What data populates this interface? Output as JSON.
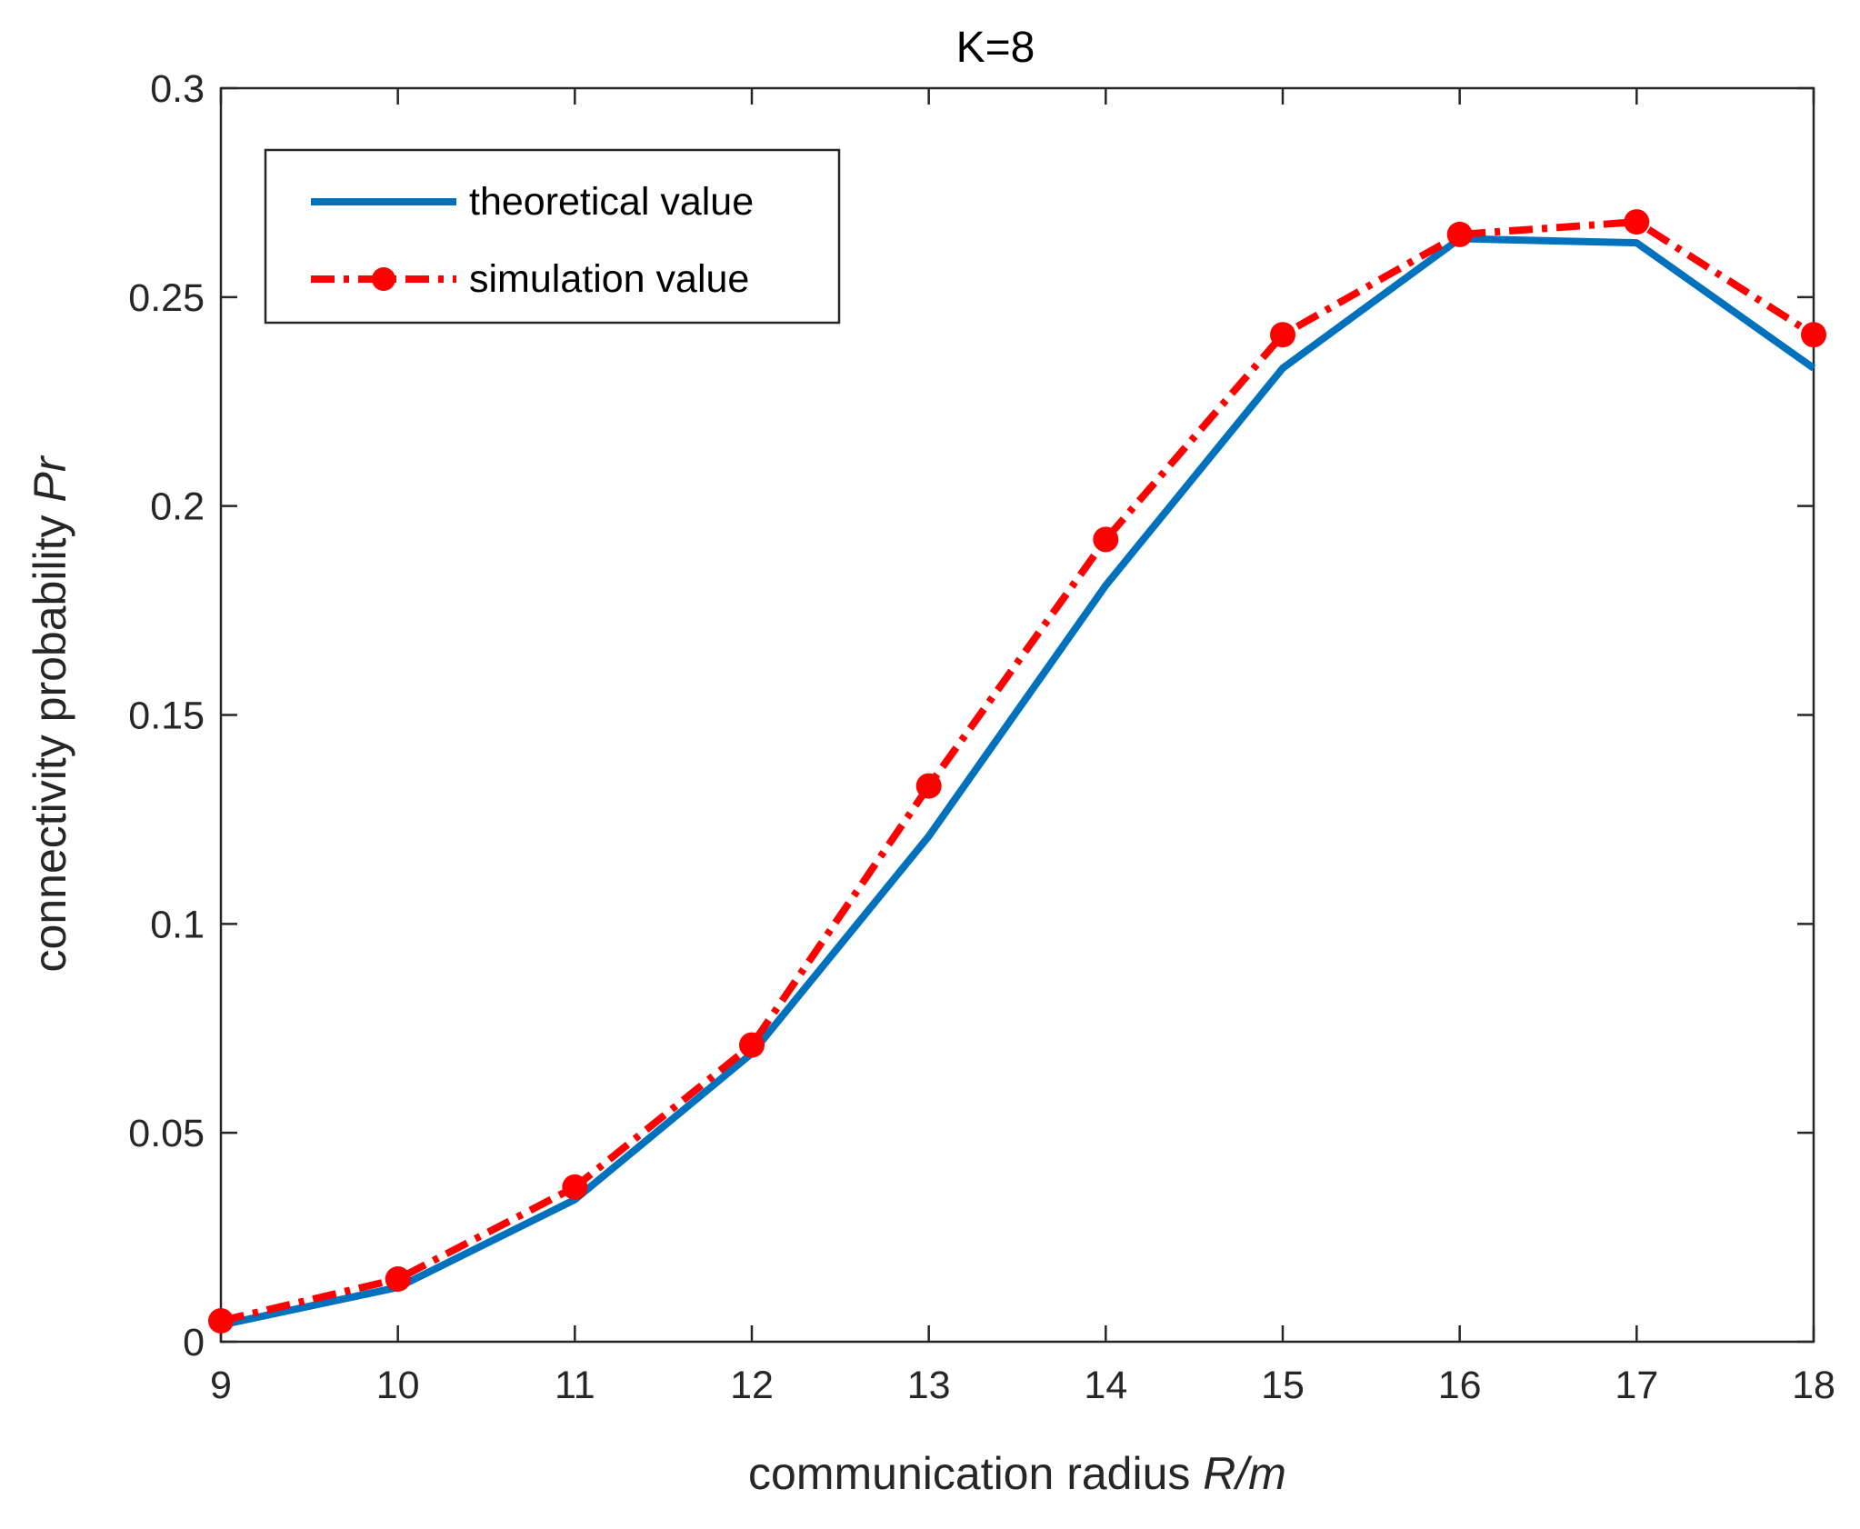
{
  "chart_data": {
    "type": "line",
    "title": "K=8",
    "xlabel": "communication radius",
    "xlabel_var": "R/m",
    "ylabel": "connectivity probability",
    "ylabel_var": "Pr",
    "xlim": [
      9,
      18
    ],
    "ylim": [
      0,
      0.3
    ],
    "xticks": [
      "9",
      "10",
      "11",
      "12",
      "13",
      "14",
      "15",
      "16",
      "17",
      "18"
    ],
    "yticks": [
      "0",
      "0.05",
      "0.1",
      "0.15",
      "0.2",
      "0.25",
      "0.3"
    ],
    "x": [
      9,
      10,
      11,
      12,
      13,
      14,
      15,
      16,
      17,
      18
    ],
    "grid": false,
    "legend_position": "top-left",
    "series": [
      {
        "name": "theoretical value",
        "values": [
          0.004,
          0.013,
          0.034,
          0.069,
          0.121,
          0.181,
          0.233,
          0.264,
          0.263,
          0.233
        ],
        "color": "#0072BD",
        "style": "solid",
        "marker": "none"
      },
      {
        "name": "simulation value",
        "values": [
          0.005,
          0.015,
          0.037,
          0.071,
          0.133,
          0.192,
          0.241,
          0.265,
          0.268,
          0.241
        ],
        "color": "#FF0000",
        "style": "dash-dot",
        "marker": "circle"
      }
    ]
  }
}
